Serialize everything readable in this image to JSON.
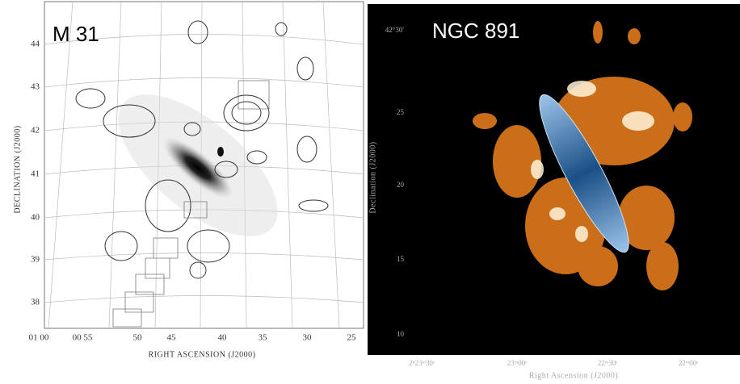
{
  "left_panel": {
    "title": "M 31",
    "y_axis_label": "DECLINATION (J2000)",
    "y_ticks": [
      "44",
      "43",
      "42",
      "41",
      "40",
      "39",
      "38"
    ],
    "x_axis_label": "RIGHT ASCENSION (J2000)",
    "x_ticks": [
      "01 00",
      "00 55",
      "50",
      "45",
      "40",
      "35",
      "30",
      "25"
    ]
  },
  "right_panel": {
    "title": "NGC 891",
    "y_axis_label": "Declination (J2000)",
    "y_ticks": [
      "42°30'",
      "25",
      "20",
      "15",
      "10"
    ],
    "x_axis_label": "Right Ascension (J2000)",
    "x_ticks": [
      "2ʰ23ᵐ30ˢ",
      "23ᵐ00ˢ",
      "22ᵐ30ˢ",
      "22ᵐ00ˢ"
    ]
  }
}
